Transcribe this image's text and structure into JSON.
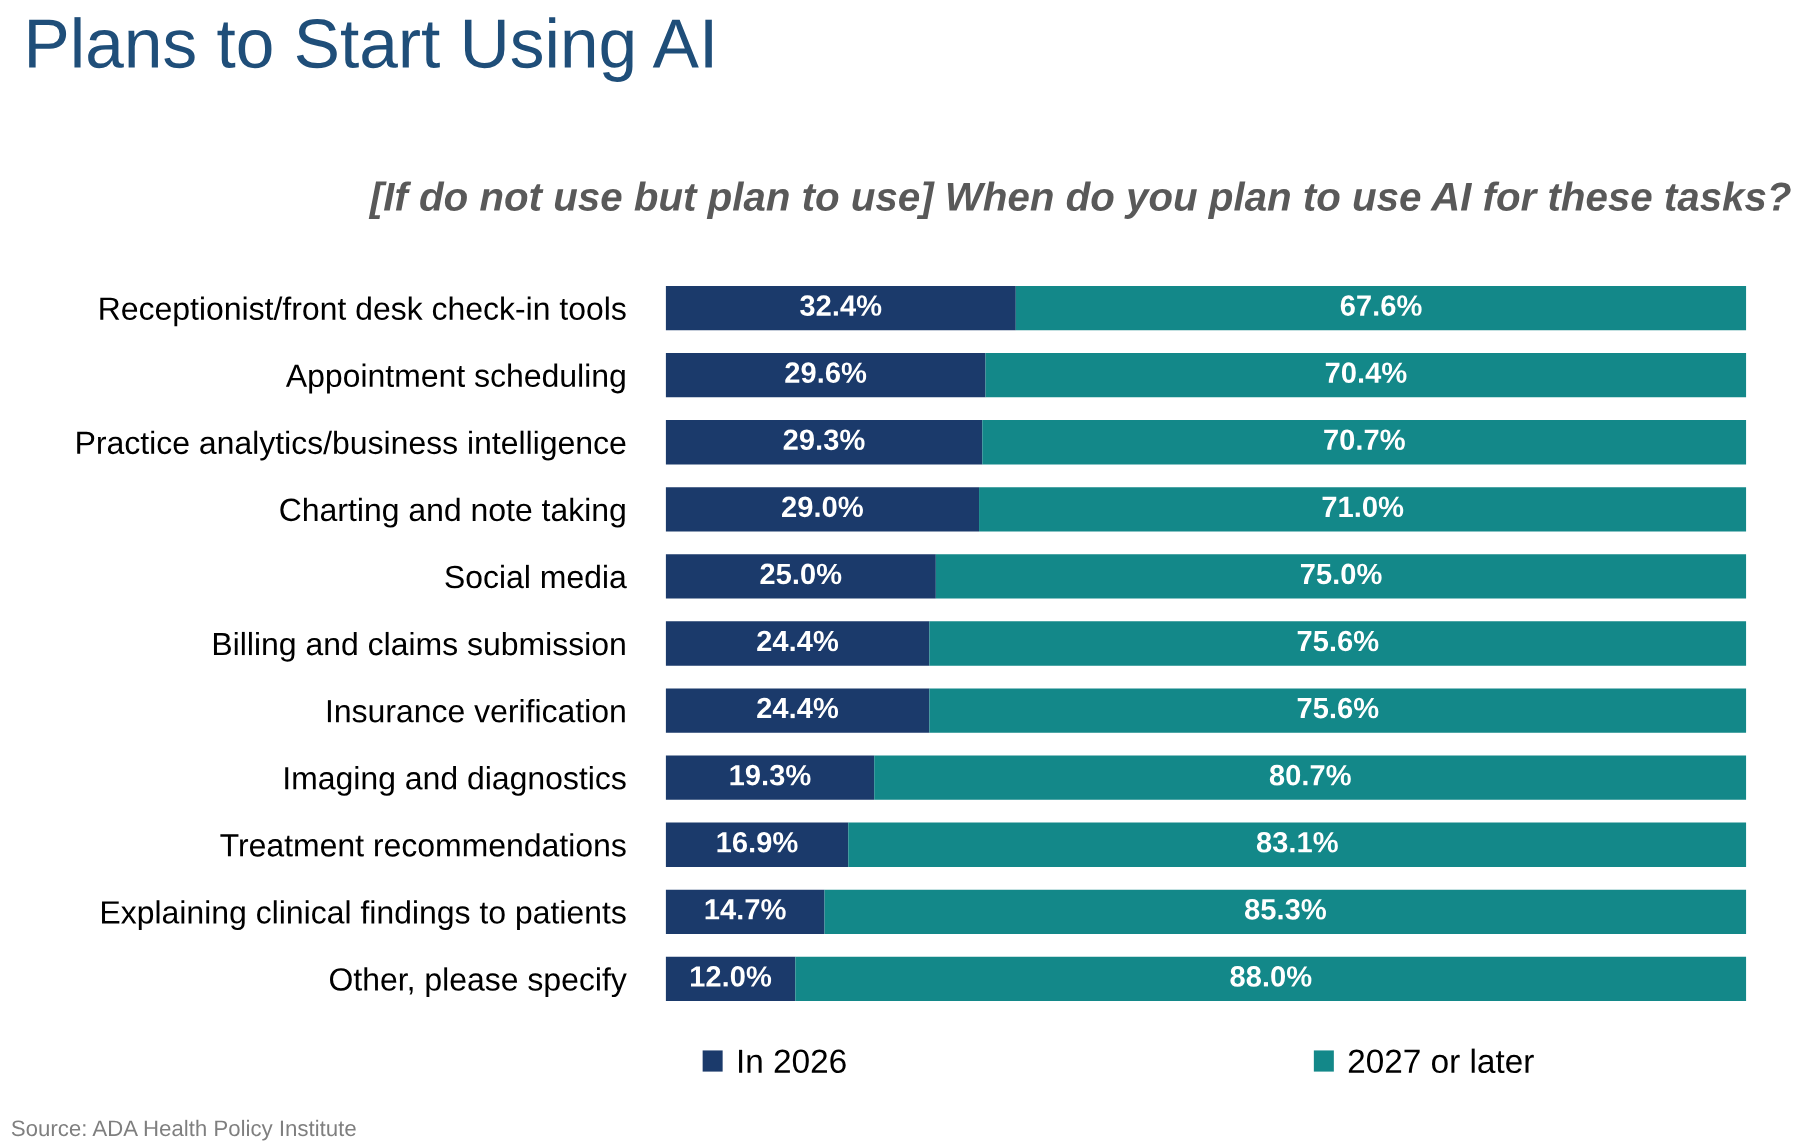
{
  "chart_data": {
    "type": "bar",
    "orientation": "horizontal",
    "stacked": true,
    "title": "Plans to Start Using AI",
    "subtitle": "[If do not use but plan to use] When do you plan to use AI for these tasks?",
    "categories": [
      "Receptionist/front desk check-in tools",
      "Appointment scheduling",
      "Practice analytics/business intelligence",
      "Charting and note taking",
      "Social media",
      "Billing and claims submission",
      "Insurance verification",
      "Imaging and diagnostics",
      "Treatment recommendations",
      "Explaining clinical findings to patients",
      "Other, please specify"
    ],
    "series": [
      {
        "name": "In 2026",
        "color": "#1b3a6b",
        "values": [
          32.4,
          29.6,
          29.3,
          29.0,
          25.0,
          24.4,
          24.4,
          19.3,
          16.9,
          14.7,
          12.0
        ],
        "value_labels": [
          "32.4%",
          "29.6%",
          "29.3%",
          "29.0%",
          "25.0%",
          "24.4%",
          "24.4%",
          "19.3%",
          "16.9%",
          "14.7%",
          "12.0%"
        ]
      },
      {
        "name": "2027 or later",
        "color": "#138889",
        "values": [
          67.6,
          70.4,
          70.7,
          71.0,
          75.0,
          75.6,
          75.6,
          80.7,
          83.1,
          85.3,
          88.0
        ],
        "value_labels": [
          "67.6%",
          "70.4%",
          "70.7%",
          "71.0%",
          "75.0%",
          "75.6%",
          "75.6%",
          "80.7%",
          "83.1%",
          "85.3%",
          "88.0%"
        ]
      }
    ],
    "legend": "bottom",
    "grid": false,
    "tick_labels": "y",
    "annotations": [
      "Source: ADA Health Policy Institute"
    ]
  }
}
